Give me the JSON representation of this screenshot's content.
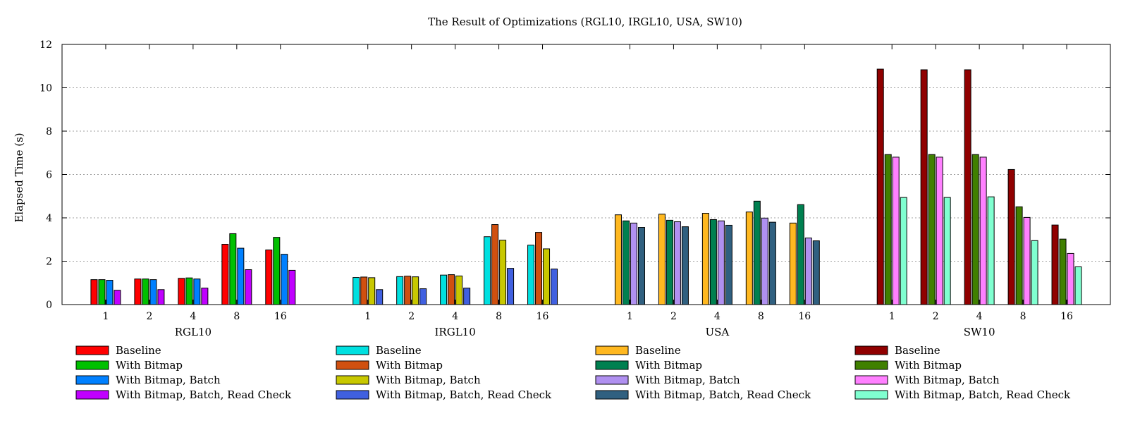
{
  "chart_data": {
    "type": "bar",
    "title": "The Result of Optimizations (RGL10, IRGL10, USA, SW10)",
    "ylabel": "Elapsed Time (s)",
    "xlabel": "",
    "ylim": [
      0,
      12
    ],
    "yticks": [
      0,
      2,
      4,
      6,
      8,
      10,
      12
    ],
    "grid": "horizontal-dotted",
    "legend_position": "bottom",
    "groups": [
      {
        "name": "RGL10",
        "categories": [
          "1",
          "2",
          "4",
          "8",
          "16"
        ],
        "series": [
          {
            "name": "Baseline",
            "color": "#ff0000",
            "values": [
              1.15,
              1.18,
              1.21,
              2.78,
              2.52
            ]
          },
          {
            "name": "With Bitmap",
            "color": "#00c000",
            "values": [
              1.15,
              1.18,
              1.23,
              3.27,
              3.1
            ]
          },
          {
            "name": "With Bitmap, Batch",
            "color": "#0080ff",
            "values": [
              1.12,
              1.15,
              1.18,
              2.6,
              2.32
            ]
          },
          {
            "name": "With Bitmap, Batch, Read Check",
            "color": "#c000ff",
            "values": [
              0.66,
              0.69,
              0.76,
              1.61,
              1.58
            ]
          }
        ]
      },
      {
        "name": "IRGL10",
        "categories": [
          "1",
          "2",
          "4",
          "8",
          "16"
        ],
        "series": [
          {
            "name": "Baseline",
            "color": "#00e0e0",
            "values": [
              1.25,
              1.29,
              1.36,
              3.13,
              2.74
            ]
          },
          {
            "name": "With Bitmap",
            "color": "#d05010",
            "values": [
              1.27,
              1.31,
              1.38,
              3.69,
              3.33
            ]
          },
          {
            "name": "With Bitmap, Batch",
            "color": "#c8c800",
            "values": [
              1.24,
              1.28,
              1.32,
              2.97,
              2.57
            ]
          },
          {
            "name": "With Bitmap, Batch, Read Check",
            "color": "#4060e0",
            "values": [
              0.69,
              0.73,
              0.76,
              1.67,
              1.64
            ]
          }
        ]
      },
      {
        "name": "USA",
        "categories": [
          "1",
          "2",
          "4",
          "8",
          "16"
        ],
        "series": [
          {
            "name": "Baseline",
            "color": "#ffb820",
            "values": [
              4.14,
              4.17,
              4.21,
              4.27,
              3.76
            ]
          },
          {
            "name": "With Bitmap",
            "color": "#008050",
            "values": [
              3.86,
              3.89,
              3.92,
              4.77,
              4.61
            ]
          },
          {
            "name": "With Bitmap, Batch",
            "color": "#b090f0",
            "values": [
              3.76,
              3.82,
              3.86,
              3.99,
              3.07
            ]
          },
          {
            "name": "With Bitmap, Batch, Read Check",
            "color": "#306080",
            "values": [
              3.56,
              3.59,
              3.66,
              3.8,
              2.94
            ]
          }
        ]
      },
      {
        "name": "SW10",
        "categories": [
          "1",
          "2",
          "4",
          "8",
          "16"
        ],
        "series": [
          {
            "name": "Baseline",
            "color": "#900000",
            "values": [
              10.86,
              10.83,
              10.83,
              6.23,
              3.67
            ]
          },
          {
            "name": "With Bitmap",
            "color": "#408000",
            "values": [
              6.92,
              6.92,
              6.92,
              4.51,
              3.02
            ]
          },
          {
            "name": "With Bitmap, Batch",
            "color": "#ff80ff",
            "values": [
              6.8,
              6.8,
              6.8,
              4.02,
              2.36
            ]
          },
          {
            "name": "With Bitmap, Batch, Read Check",
            "color": "#80ffd0",
            "values": [
              4.94,
              4.94,
              4.97,
              2.95,
              1.74
            ]
          }
        ]
      }
    ]
  }
}
